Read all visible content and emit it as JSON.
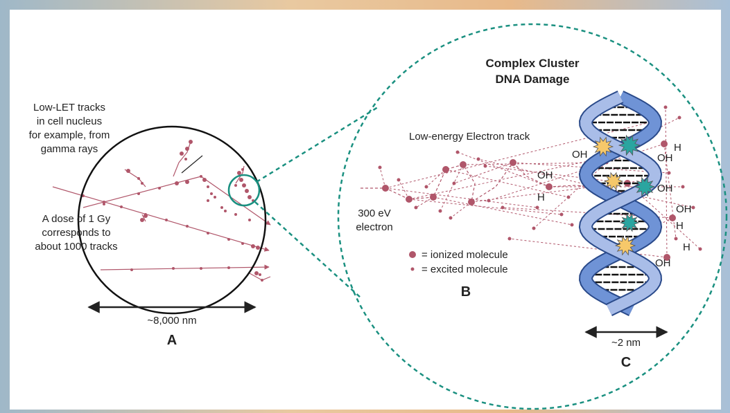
{
  "panel_a": {
    "track_note": [
      "Low-LET tracks",
      "in cell nucleus",
      "for example, from",
      "gamma rays"
    ],
    "dose_note": [
      "A dose of 1 Gy",
      "corresponds to",
      "about 1000 tracks"
    ],
    "scale": "~8,000 nm",
    "label": "A"
  },
  "panel_b": {
    "title": [
      "Complex Cluster",
      "DNA Damage"
    ],
    "track_label": "Low-energy Electron track",
    "electron": [
      "300 eV",
      "electron"
    ],
    "legend": [
      "= ionized molecule",
      "= excited molecule"
    ],
    "label": "B"
  },
  "panel_c": {
    "chem_labels": [
      "OH",
      "OH",
      "H",
      "H",
      "OH",
      "OH",
      "OH",
      "H",
      "H",
      "OH"
    ],
    "scale": "~2 nm",
    "label": "C"
  }
}
